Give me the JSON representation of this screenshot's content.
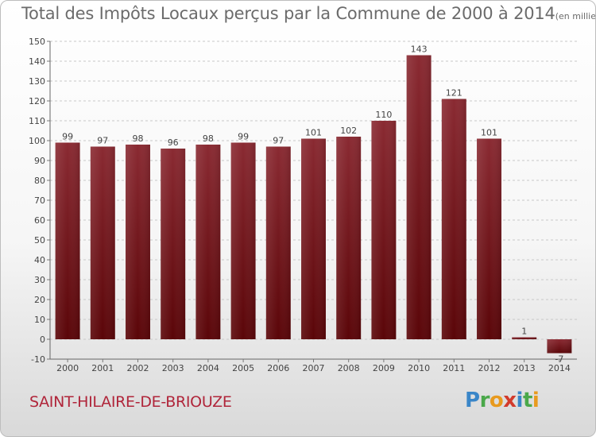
{
  "header": {
    "title": "Total des Impôts Locaux perçus par la Commune de 2000 à 2014",
    "unit": "(en milliers d'€)"
  },
  "footer": {
    "commune": "SAINT-HILAIRE-DE-BRIOUZE",
    "logo_text": "Proxiti",
    "logo_letters": [
      {
        "ch": "P",
        "color": "#3a86c8"
      },
      {
        "ch": "r",
        "color": "#4aa84a"
      },
      {
        "ch": "o",
        "color": "#e89a1e"
      },
      {
        "ch": "x",
        "color": "#d23b2c"
      },
      {
        "ch": "i",
        "color": "#3a86c8"
      },
      {
        "ch": "t",
        "color": "#4aa84a"
      },
      {
        "ch": "i",
        "color": "#e89a1e"
      }
    ]
  },
  "chart_data": {
    "type": "bar",
    "title": "Total des Impôts Locaux perçus par la Commune de 2000 à 2014",
    "subtitle": "(en milliers d'€)",
    "categories": [
      "2000",
      "2001",
      "2002",
      "2003",
      "2004",
      "2005",
      "2006",
      "2007",
      "2008",
      "2009",
      "2010",
      "2011",
      "2012",
      "2013",
      "2014"
    ],
    "values": [
      99,
      97,
      98,
      96,
      98,
      99,
      97,
      101,
      102,
      110,
      143,
      121,
      101,
      1,
      -7
    ],
    "value_labels": [
      "99",
      "97",
      "98",
      "96",
      "98",
      "99",
      "97",
      "101",
      "102",
      "110",
      "143",
      "121",
      "101",
      "1",
      "-7"
    ],
    "ylim": [
      -10,
      150
    ],
    "yticks": [
      -10,
      0,
      10,
      20,
      30,
      40,
      50,
      60,
      70,
      80,
      90,
      100,
      110,
      120,
      130,
      140,
      150
    ],
    "grid": true,
    "bar_color_top": "#8a2a32",
    "bar_color_bottom": "#5a0508",
    "grid_color": "#c8c8c8",
    "axis_text_color": "#444444"
  }
}
